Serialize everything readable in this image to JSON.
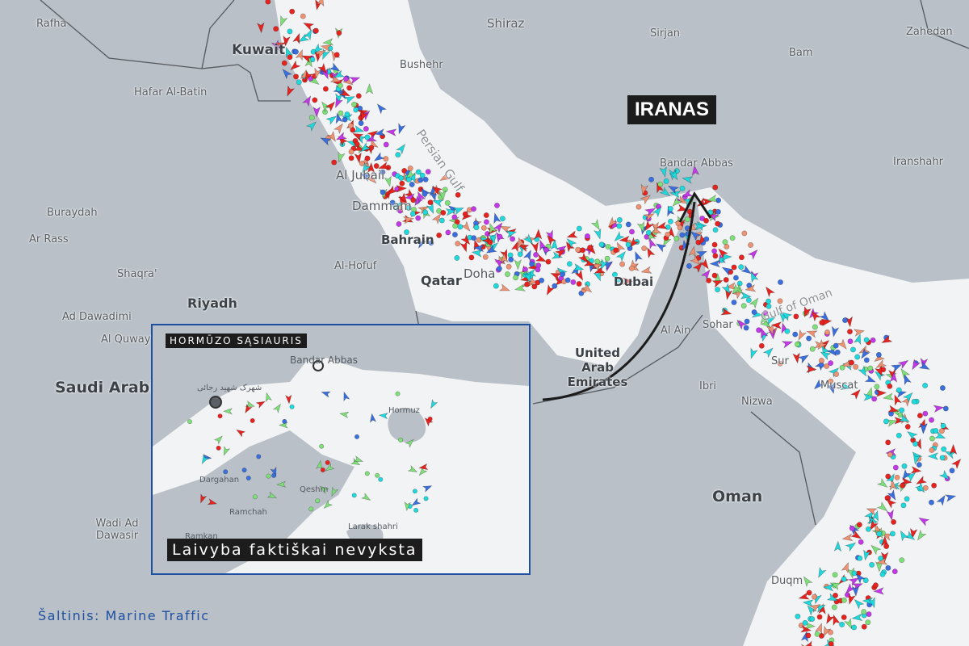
{
  "map": {
    "country_labels": [
      "Saudi Arabia",
      "Oman",
      "United Arab Emirates",
      "Qatar",
      "Bahrain",
      "Kuwait"
    ],
    "city_labels": [
      "Rafha",
      "Hafar Al-Batin",
      "Buraydah",
      "Ar Rass",
      "Shaqra'",
      "Ad Dawadimi",
      "Al Quway'",
      "Riyadh",
      "Wadi Ad Dawasir",
      "Al-Hofuf",
      "Dammam",
      "Al Jubail",
      "Doha",
      "Dubai",
      "Al Ain",
      "Ibri",
      "Nizwa",
      "Muscat",
      "Sur",
      "Duqm",
      "Bushehr",
      "Shiraz",
      "Sirjan",
      "Bam",
      "Zahedan",
      "Iranshahr",
      "Bandar Abbas",
      "Sohar"
    ],
    "sea_label": "Persian Gulf",
    "gulf_of_oman_label": "Gulf of Oman"
  },
  "callout": {
    "label": "IRANAS"
  },
  "inset": {
    "title": "HORMŪZO SĄSIAURIS",
    "caption": "Laivyba faktiškai nevyksta",
    "labels": [
      "Bandar Abbas",
      "شهرک شهید رجائی",
      "Hormuz",
      "Dargahan",
      "Qeshm",
      "Ramchah",
      "Larak shahri",
      "Ramkan"
    ]
  },
  "source": "Šaltinis: Marine Traffic",
  "colors": {
    "land": "#b9c0c7",
    "sea": "#f2f3f4",
    "tanker": "#e8231f",
    "cargo": "#7fe07a",
    "passenger": "#20d9dd",
    "fishing": "#ee9274",
    "pleasure": "#c339e8",
    "tug": "#3a6fe0",
    "border": "#1f4fa0"
  }
}
